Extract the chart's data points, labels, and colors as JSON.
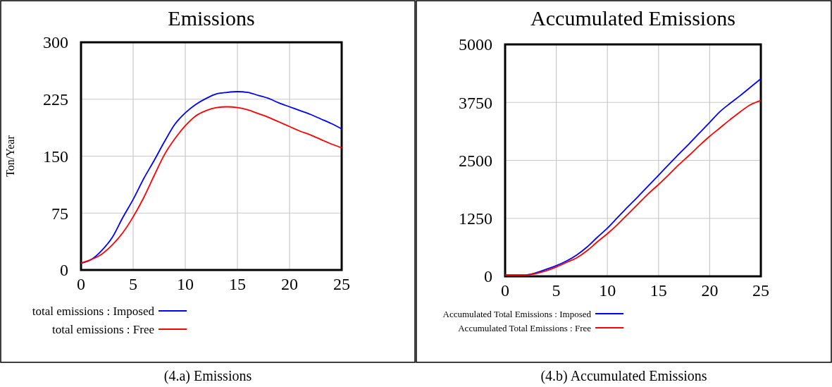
{
  "chart_data": [
    {
      "type": "line",
      "title": "Emissions",
      "ylabel": "Ton/Year",
      "xlim": [
        0,
        25
      ],
      "xticks": [
        0,
        5,
        10,
        15,
        20,
        25
      ],
      "ylim": [
        0,
        300
      ],
      "yticks": [
        0,
        75,
        150,
        225,
        300
      ],
      "grid": true,
      "legend": "bottom",
      "line_style": "solid",
      "x": [
        0,
        1,
        2,
        3,
        4,
        5,
        6,
        7,
        8,
        9,
        10,
        11,
        12,
        13,
        14,
        15,
        16,
        17,
        18,
        19,
        20,
        21,
        22,
        23,
        24,
        25
      ],
      "series": [
        {
          "name": "total emissions : Imposed",
          "color": "#0000ff",
          "values": [
            9,
            14,
            26,
            43,
            69,
            93,
            120,
            144,
            169,
            192,
            207,
            218,
            226,
            232,
            234,
            235,
            234,
            230,
            226,
            220,
            215,
            210,
            205,
            199,
            193,
            186
          ]
        },
        {
          "name": "total emissions : Free",
          "color": "#ff0000",
          "values": [
            9,
            14,
            21,
            33,
            49,
            70,
            95,
            124,
            152,
            173,
            190,
            203,
            210,
            214,
            215,
            214,
            211,
            206,
            201,
            195,
            189,
            183,
            178,
            172,
            166,
            161
          ]
        }
      ],
      "annotations": [
        "(4.a) Emissions"
      ]
    },
    {
      "type": "line",
      "title": "Accumulated Emissions",
      "xlim": [
        0,
        25
      ],
      "xticks": [
        0,
        5,
        10,
        15,
        20,
        25
      ],
      "ylim": [
        0,
        5000
      ],
      "yticks": [
        0,
        1250,
        2500,
        3750,
        5000
      ],
      "grid": true,
      "legend": "bottom",
      "line_style": "solid",
      "x": [
        0,
        2,
        4,
        5,
        6,
        7,
        8,
        9,
        10,
        11,
        12,
        13,
        14,
        15,
        16,
        17,
        18,
        19,
        20,
        21,
        22,
        23,
        24,
        25
      ],
      "series": [
        {
          "name": "Accumulated Total Emissions : Imposed",
          "color": "#0000ff",
          "values": [
            30,
            30,
            150,
            230,
            330,
            460,
            630,
            840,
            1040,
            1270,
            1500,
            1720,
            1950,
            2180,
            2410,
            2640,
            2860,
            3090,
            3320,
            3550,
            3730,
            3900,
            4080,
            4260
          ]
        },
        {
          "name": "Accumulated Total Emissions : Free",
          "color": "#ff0000",
          "values": [
            30,
            30,
            120,
            200,
            300,
            400,
            550,
            740,
            920,
            1120,
            1340,
            1560,
            1780,
            1980,
            2190,
            2410,
            2610,
            2820,
            3020,
            3200,
            3380,
            3550,
            3700,
            3790
          ]
        }
      ],
      "annotations": [
        "(4.b) Accumulated Emissions"
      ]
    }
  ]
}
